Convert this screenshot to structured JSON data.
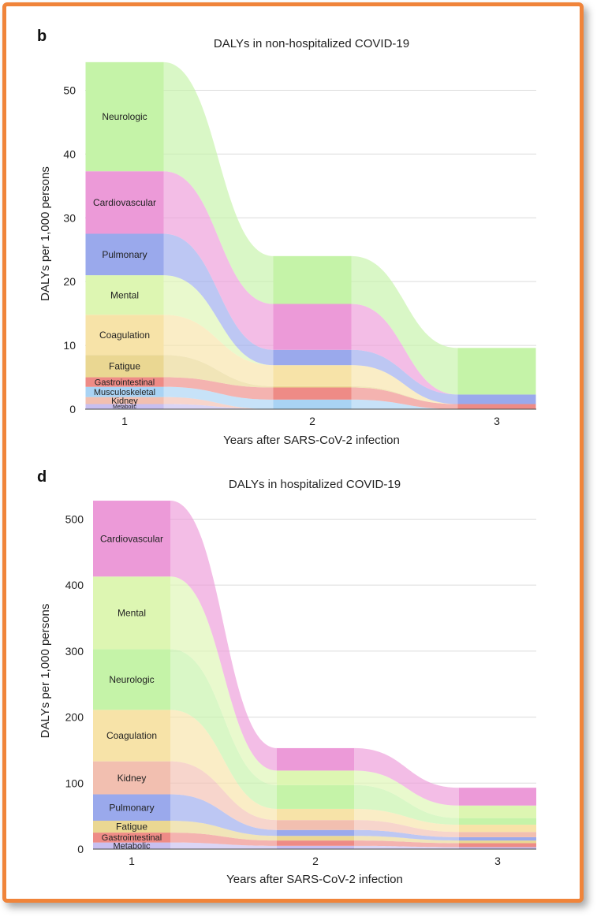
{
  "colors": {
    "frame": "#f0843a",
    "categories": {
      "Neurologic": "#c5f3a8",
      "Cardiovascular": "#ec9ad8",
      "Pulmonary": "#9aa9ec",
      "Mental": "#ddf6b2",
      "Coagulation": "#f7e3a8",
      "Fatigue": "#ead792",
      "Gastrointestinal": "#ee8b86",
      "Musculoskeletal": "#a9d3f4",
      "Kidney": "#f2bfb0",
      "Metabolic": "#c8bff0"
    }
  },
  "chart_data": [
    {
      "panel": "b",
      "type": "area",
      "subtype": "alluvial-stacked",
      "title": "DALYs in non-hospitalized COVID-19",
      "xlabel": "Years after SARS-CoV-2 infection",
      "ylabel": "DALYs per 1,000 persons",
      "x": [
        1,
        2,
        3
      ],
      "x_ticks": [
        "1",
        "2",
        "3"
      ],
      "ylim": [
        0,
        55
      ],
      "y_ticks": [
        0,
        10,
        20,
        30,
        40,
        50
      ],
      "grid": true,
      "series": [
        {
          "name": "Metabolic",
          "values": [
            0.8,
            0,
            0
          ],
          "label_year": 1
        },
        {
          "name": "Kidney",
          "values": [
            1.1,
            0,
            0
          ],
          "label_year": 1
        },
        {
          "name": "Musculoskeletal",
          "values": [
            1.6,
            1.5,
            0
          ],
          "label_year": 1
        },
        {
          "name": "Gastrointestinal",
          "values": [
            1.5,
            1.9,
            0.8
          ],
          "label_year": 1
        },
        {
          "name": "Fatigue",
          "values": [
            3.5,
            0.2,
            0
          ],
          "label_year": 1
        },
        {
          "name": "Coagulation",
          "values": [
            6.3,
            3.3,
            0
          ],
          "label_year": 1
        },
        {
          "name": "Mental",
          "values": [
            6.2,
            0,
            0
          ],
          "label_year": 1
        },
        {
          "name": "Pulmonary",
          "values": [
            6.5,
            2.4,
            1.5
          ],
          "label_year": 1
        },
        {
          "name": "Cardiovascular",
          "values": [
            9.8,
            7.2,
            0
          ],
          "label_year": 1
        },
        {
          "name": "Neurologic",
          "values": [
            17.1,
            7.5,
            7.3
          ],
          "label_year": 1
        }
      ]
    },
    {
      "panel": "d",
      "type": "area",
      "subtype": "alluvial-stacked",
      "title": "DALYs in hospitalized COVID-19",
      "xlabel": "Years after SARS-CoV-2 infection",
      "ylabel": "DALYs per 1,000 persons",
      "x": [
        1,
        2,
        3
      ],
      "x_ticks": [
        "1",
        "2",
        "3"
      ],
      "ylim": [
        0,
        540
      ],
      "y_ticks": [
        0,
        100,
        200,
        300,
        400,
        500
      ],
      "grid": true,
      "series": [
        {
          "name": "Metabolic",
          "values": [
            10,
            5,
            3
          ],
          "label_year": 1
        },
        {
          "name": "Gastrointestinal",
          "values": [
            15,
            8,
            6
          ],
          "label_year": 1
        },
        {
          "name": "Fatigue",
          "values": [
            18,
            7,
            4
          ],
          "label_year": 1
        },
        {
          "name": "Pulmonary",
          "values": [
            40,
            9,
            5
          ],
          "label_year": 1
        },
        {
          "name": "Kidney",
          "values": [
            50,
            15,
            8
          ],
          "label_year": 1
        },
        {
          "name": "Coagulation",
          "values": [
            78,
            17,
            11
          ],
          "label_year": 1
        },
        {
          "name": "Neurologic",
          "values": [
            92,
            36,
            10
          ],
          "label_year": 1
        },
        {
          "name": "Mental",
          "values": [
            110,
            22,
            19
          ],
          "label_year": 1
        },
        {
          "name": "Cardiovascular",
          "values": [
            115,
            34,
            27
          ],
          "label_year": 1
        }
      ]
    }
  ]
}
